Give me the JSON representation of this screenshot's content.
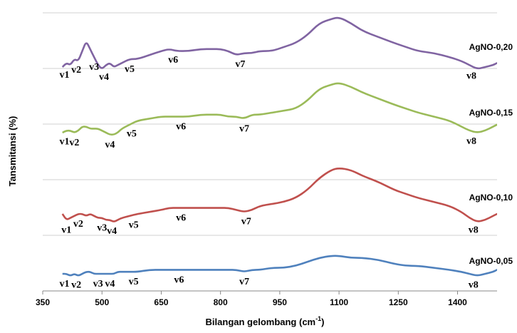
{
  "chart_data": {
    "type": "line",
    "title": "",
    "xlabel": "Bilangan gelombang (cm",
    "xlabel_sup": "-1",
    "xlabel_close": ")",
    "ylabel": "Tansmitansi (%)",
    "xlim": [
      350,
      1500
    ],
    "xticks": [
      350,
      500,
      650,
      800,
      950,
      1100,
      1250,
      1400
    ],
    "xtick_labels": [
      "350",
      "500",
      "650",
      "800",
      "950",
      "1100",
      "1250",
      "1400"
    ],
    "grid": "horizontal",
    "series": [
      {
        "name": "AgNO-0,20",
        "color": "#8064A2",
        "x": [
          400,
          410,
          420,
          430,
          440,
          450,
          460,
          470,
          480,
          490,
          500,
          510,
          520,
          530,
          540,
          550,
          570,
          590,
          620,
          650,
          670,
          690,
          720,
          750,
          780,
          800,
          820,
          840,
          860,
          880,
          900,
          930,
          960,
          990,
          1020,
          1050,
          1080,
          1100,
          1130,
          1160,
          1200,
          1240,
          1270,
          1300,
          1340,
          1380,
          1410,
          1430,
          1450,
          1470,
          1490,
          1500
        ],
        "y": [
          32,
          34,
          33,
          36,
          35,
          40,
          45,
          41,
          37,
          33,
          31,
          33,
          34,
          32,
          33,
          34,
          36,
          36,
          38,
          40,
          41,
          40,
          40,
          41,
          41,
          41,
          40,
          38,
          39,
          39,
          40,
          40,
          42,
          44,
          48,
          54,
          56,
          57,
          54,
          50,
          47,
          44,
          42,
          40,
          39,
          37,
          35,
          33,
          31,
          32,
          33,
          34
        ]
      },
      {
        "name": "AgNO-0,15",
        "color": "#9BBB59",
        "x": [
          400,
          410,
          420,
          430,
          440,
          450,
          460,
          470,
          480,
          490,
          500,
          510,
          520,
          530,
          540,
          550,
          570,
          590,
          620,
          650,
          670,
          690,
          720,
          750,
          780,
          800,
          820,
          840,
          860,
          880,
          900,
          930,
          960,
          990,
          1020,
          1050,
          1080,
          1100,
          1130,
          1160,
          1200,
          1240,
          1270,
          1300,
          1340,
          1380,
          1410,
          1430,
          1450,
          1470,
          1490,
          1500
        ],
        "y": [
          22,
          23,
          23,
          22,
          23,
          25,
          25,
          24,
          24,
          24,
          23,
          22,
          21,
          21,
          22,
          24,
          26,
          28,
          29,
          30,
          30,
          30,
          30,
          31,
          31,
          31,
          30,
          30,
          29,
          31,
          31,
          32,
          33,
          34,
          38,
          44,
          46,
          47,
          45,
          42,
          39,
          36,
          34,
          32,
          30,
          28,
          25,
          23,
          22,
          23,
          25,
          26
        ]
      },
      {
        "name": "AgNO-0,10",
        "color": "#C0504D",
        "x": [
          400,
          410,
          420,
          430,
          440,
          450,
          460,
          470,
          480,
          490,
          500,
          510,
          520,
          530,
          540,
          550,
          570,
          590,
          620,
          650,
          670,
          690,
          720,
          750,
          780,
          800,
          820,
          840,
          860,
          880,
          900,
          930,
          960,
          990,
          1020,
          1050,
          1080,
          1100,
          1130,
          1160,
          1200,
          1240,
          1270,
          1300,
          1340,
          1380,
          1410,
          1430,
          1450,
          1470,
          1490,
          1500
        ],
        "y": [
          14,
          11,
          12,
          13,
          14,
          14,
          13,
          14,
          13,
          12,
          12,
          11,
          11,
          10,
          11,
          12,
          13,
          14,
          15,
          16,
          17,
          17,
          17,
          17,
          17,
          17,
          17,
          16,
          15,
          16,
          18,
          19,
          20,
          22,
          26,
          32,
          36,
          37,
          36,
          33,
          30,
          26,
          24,
          22,
          20,
          18,
          15,
          12,
          10,
          11,
          13,
          14
        ]
      },
      {
        "name": "AgNO-0,05",
        "color": "#4F81BD",
        "x": [
          400,
          410,
          420,
          430,
          440,
          450,
          460,
          470,
          480,
          490,
          500,
          510,
          520,
          530,
          540,
          550,
          570,
          590,
          620,
          650,
          670,
          690,
          720,
          750,
          780,
          800,
          820,
          840,
          860,
          880,
          900,
          930,
          960,
          990,
          1020,
          1050,
          1080,
          1100,
          1130,
          1160,
          1200,
          1240,
          1270,
          1300,
          1340,
          1380,
          1410,
          1430,
          1450,
          1470,
          1490,
          1500
        ],
        "y": [
          2,
          2,
          1,
          2,
          1,
          2,
          3,
          3,
          2,
          2,
          2,
          2,
          2,
          2,
          3,
          3,
          3,
          3,
          4,
          4,
          4,
          4,
          4,
          4,
          4,
          4,
          4,
          4,
          3,
          4,
          4,
          5,
          5,
          6,
          8,
          10,
          11,
          11,
          10,
          10,
          9,
          7,
          6,
          6,
          5,
          4,
          3,
          2,
          1,
          2,
          3,
          4
        ]
      }
    ],
    "annotations": [
      {
        "series": 0,
        "text": "v1",
        "x": 405
      },
      {
        "series": 0,
        "text": "v2",
        "x": 435
      },
      {
        "series": 0,
        "text": "v3",
        "x": 480
      },
      {
        "series": 0,
        "text": "v4",
        "x": 505
      },
      {
        "series": 0,
        "text": "v5",
        "x": 570
      },
      {
        "series": 0,
        "text": "v6",
        "x": 680
      },
      {
        "series": 0,
        "text": "v7",
        "x": 850
      },
      {
        "series": 0,
        "text": "v8",
        "x": 1435
      },
      {
        "series": 1,
        "text": "v1",
        "x": 405
      },
      {
        "series": 1,
        "text": "v2",
        "x": 430
      },
      {
        "series": 1,
        "text": "v4",
        "x": 520
      },
      {
        "series": 1,
        "text": "v5",
        "x": 575
      },
      {
        "series": 1,
        "text": "v6",
        "x": 700
      },
      {
        "series": 1,
        "text": "v7",
        "x": 860
      },
      {
        "series": 1,
        "text": "v8",
        "x": 1435
      },
      {
        "series": 2,
        "text": "v1",
        "x": 410
      },
      {
        "series": 2,
        "text": "v2",
        "x": 440
      },
      {
        "series": 2,
        "text": "v3",
        "x": 500
      },
      {
        "series": 2,
        "text": "v4",
        "x": 525
      },
      {
        "series": 2,
        "text": "v5",
        "x": 580
      },
      {
        "series": 2,
        "text": "v6",
        "x": 700
      },
      {
        "series": 2,
        "text": "v7",
        "x": 865
      },
      {
        "series": 2,
        "text": "v8",
        "x": 1440
      },
      {
        "series": 3,
        "text": "v1",
        "x": 405
      },
      {
        "series": 3,
        "text": "v2",
        "x": 435
      },
      {
        "series": 3,
        "text": "v3",
        "x": 490
      },
      {
        "series": 3,
        "text": "v4",
        "x": 520
      },
      {
        "series": 3,
        "text": "v5",
        "x": 580
      },
      {
        "series": 3,
        "text": "v6",
        "x": 695
      },
      {
        "series": 3,
        "text": "v7",
        "x": 860
      },
      {
        "series": 3,
        "text": "v8",
        "x": 1440
      }
    ]
  }
}
